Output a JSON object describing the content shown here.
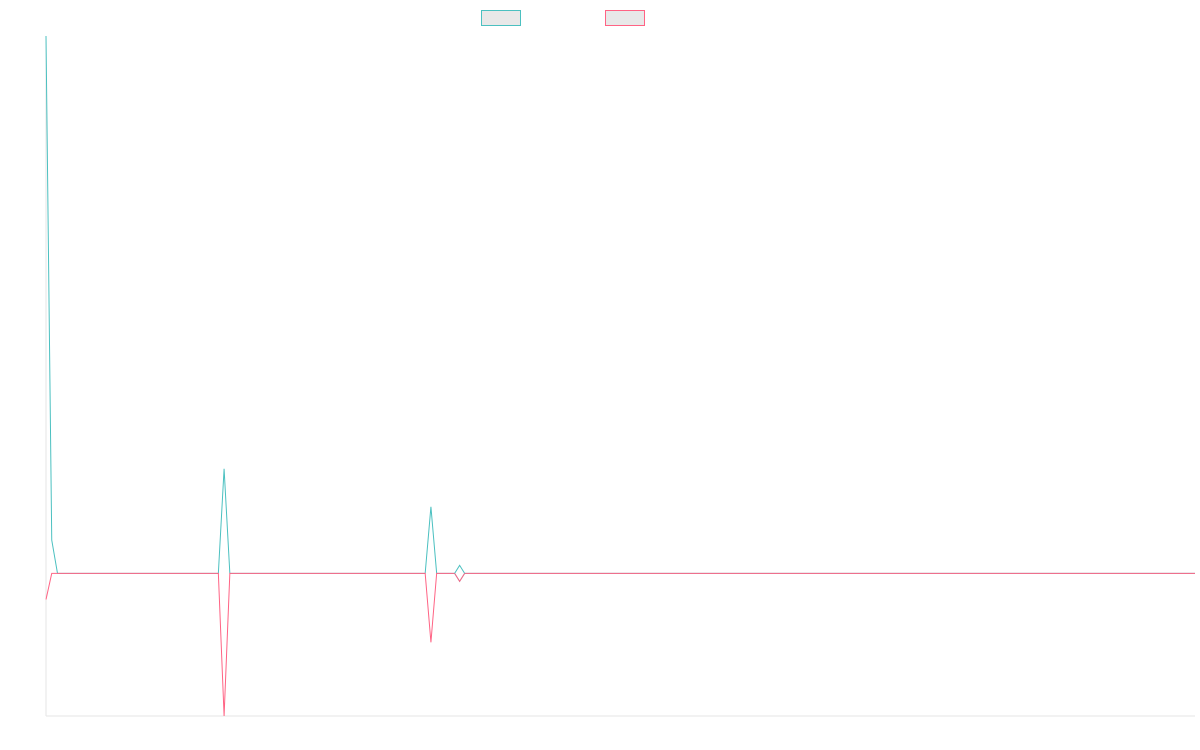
{
  "chart_data": {
    "type": "line",
    "title": "",
    "xlabel": "",
    "ylabel": "",
    "x_count": 201,
    "xlim": [
      0,
      200
    ],
    "ylim": [
      -3,
      11.3
    ],
    "grid": false,
    "legend_position": "top-center",
    "series": [
      {
        "color": "#4bc0c0",
        "point_style": "none",
        "values_sparse": {
          "0": 11.3,
          "1": 0.7,
          "2": 0,
          "31": 2.2,
          "67": 1.4,
          "72": 0
        },
        "default_value": 0
      },
      {
        "color": "#ff6384",
        "point_style": "none",
        "values_sparse": {
          "0": -0.55,
          "1": 0,
          "31": -3,
          "67": -1.45,
          "72": 0
        },
        "default_value": 0
      }
    ],
    "highlighted_point": {
      "series_index": 0,
      "x_index": 72,
      "value": 0
    }
  }
}
